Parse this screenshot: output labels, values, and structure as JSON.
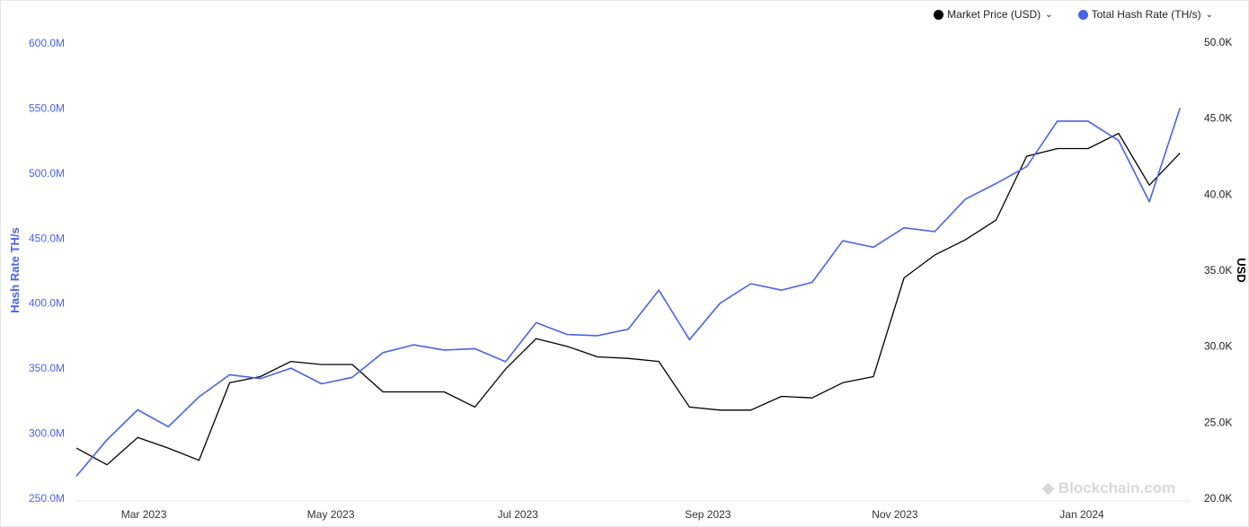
{
  "chart_data": {
    "type": "line",
    "x": [
      "2023-02-07",
      "2023-02-17",
      "2023-02-27",
      "2023-03-09",
      "2023-03-19",
      "2023-03-29",
      "2023-04-08",
      "2023-04-18",
      "2023-04-28",
      "2023-05-08",
      "2023-05-18",
      "2023-05-28",
      "2023-06-07",
      "2023-06-17",
      "2023-06-27",
      "2023-07-07",
      "2023-07-17",
      "2023-07-27",
      "2023-08-06",
      "2023-08-16",
      "2023-08-26",
      "2023-09-05",
      "2023-09-15",
      "2023-09-25",
      "2023-10-05",
      "2023-10-15",
      "2023-10-25",
      "2023-11-04",
      "2023-11-14",
      "2023-11-24",
      "2023-12-04",
      "2023-12-14",
      "2023-12-24",
      "2024-01-03",
      "2024-01-13",
      "2024-01-23",
      "2024-02-02"
    ],
    "series": [
      {
        "name": "Market Price (USD)",
        "axis": "right",
        "color": "#000000",
        "values": [
          23300,
          22200,
          24000,
          23300,
          22500,
          27600,
          28000,
          29000,
          28800,
          28800,
          27000,
          27000,
          27000,
          26000,
          28500,
          30500,
          30000,
          29300,
          29200,
          29000,
          26000,
          25800,
          25800,
          26700,
          26600,
          27600,
          28000,
          34500,
          36000,
          37000,
          38300,
          42500,
          43000,
          43000,
          44000,
          40600,
          42700
        ]
      },
      {
        "name": "Total Hash Rate (TH/s)",
        "axis": "left",
        "color": "#4a63e7",
        "values": [
          267000000,
          295000000,
          318000000,
          305000000,
          328000000,
          345000000,
          342000000,
          350000000,
          338000000,
          343000000,
          362000000,
          368000000,
          364000000,
          365000000,
          355000000,
          385000000,
          376000000,
          375000000,
          380000000,
          410000000,
          372000000,
          400000000,
          415000000,
          410000000,
          416000000,
          448000000,
          443000000,
          458000000,
          455000000,
          480000000,
          492000000,
          505000000,
          540000000,
          540000000,
          525000000,
          478000000,
          550000000
        ]
      }
    ],
    "x_ticks": [
      "Mar 2023",
      "May 2023",
      "Jul 2023",
      "Sep 2023",
      "Nov 2023",
      "Jan 2024"
    ],
    "x_tick_dates": [
      "2023-03-01",
      "2023-05-01",
      "2023-07-01",
      "2023-09-01",
      "2023-11-01",
      "2024-01-01"
    ],
    "x_range": [
      "2023-02-07",
      "2024-02-04"
    ],
    "y_left": {
      "label": "Hash Rate TH/s",
      "range": [
        250000000,
        600000000
      ],
      "ticks": [
        "250.0M",
        "300.0M",
        "350.0M",
        "400.0M",
        "450.0M",
        "500.0M",
        "550.0M",
        "600.0M"
      ],
      "color": "#4a63e7"
    },
    "y_right": {
      "label": "USD",
      "range": [
        20000,
        50000
      ],
      "ticks": [
        "20.0K",
        "25.0K",
        "30.0K",
        "35.0K",
        "40.0K",
        "45.0K",
        "50.0K"
      ]
    },
    "grid": false,
    "legend_position": "top-right"
  },
  "watermark": "Blockchain.com"
}
